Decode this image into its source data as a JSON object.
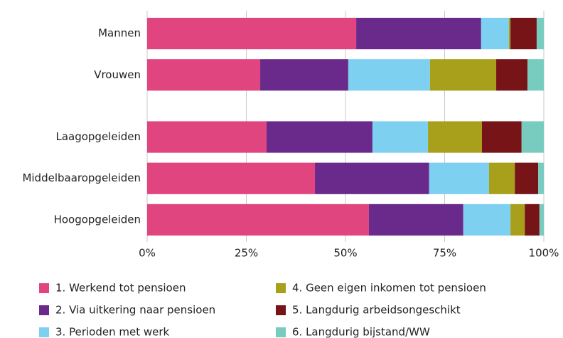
{
  "chart_data": {
    "type": "stacked-bar-horizontal",
    "categories": [
      "Mannen",
      "Vrouwen",
      null,
      "Laagopgeleiden",
      "Middelbaaropgeleiden",
      "Hoogopgeleiden"
    ],
    "series": [
      {
        "name": "1. Werkend tot pensioen",
        "color": "#e0457f",
        "values": [
          52.7,
          28.5,
          null,
          30.1,
          42.3,
          55.9
        ]
      },
      {
        "name": "2. Via uitkering naar pensioen",
        "color": "#6a2a8b",
        "values": [
          31.5,
          22.2,
          null,
          26.7,
          28.8,
          23.8
        ]
      },
      {
        "name": "3. Perioden met werk",
        "color": "#7dd0f0",
        "values": [
          7.0,
          20.6,
          null,
          14.0,
          15.1,
          11.9
        ]
      },
      {
        "name": "4. Geen eigen inkomen tot pensioen",
        "color": "#a8a01a",
        "values": [
          0.4,
          16.7,
          null,
          13.6,
          6.5,
          3.6
        ]
      },
      {
        "name": "5. Langdurig arbeidsongeschikt",
        "color": "#761418",
        "values": [
          6.6,
          7.9,
          null,
          10.0,
          5.9,
          3.7
        ]
      },
      {
        "name": "6. Langdurig bijstand/WW",
        "color": "#77cbbf",
        "values": [
          1.8,
          4.1,
          null,
          5.6,
          1.4,
          1.1
        ]
      }
    ],
    "xlim": [
      0,
      100
    ],
    "xticks": [
      {
        "value": 0,
        "label": "0%"
      },
      {
        "value": 25,
        "label": "25%"
      },
      {
        "value": 50,
        "label": "50%"
      },
      {
        "value": 75,
        "label": "75%"
      },
      {
        "value": 100,
        "label": "100%"
      }
    ],
    "grid": true
  }
}
